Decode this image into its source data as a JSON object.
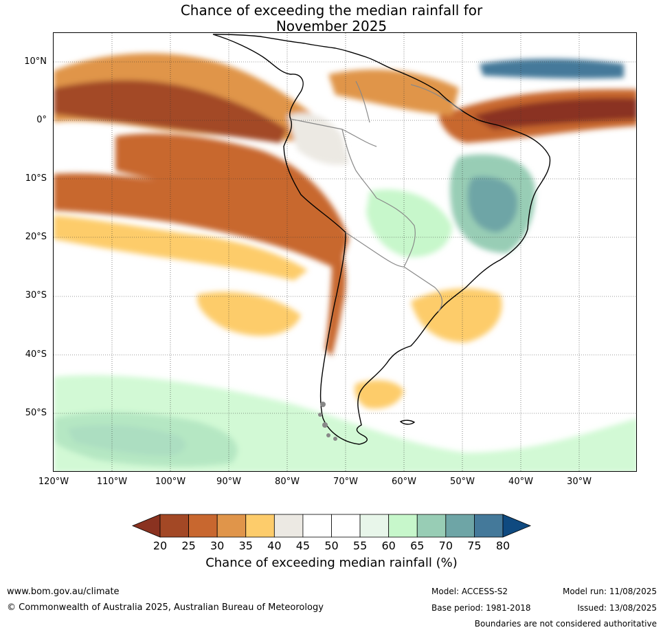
{
  "title": {
    "line1": "Chance of exceeding the median rainfall for",
    "line2": "November 2025"
  },
  "map": {
    "lat_labels": [
      "10°N",
      "0°",
      "10°S",
      "20°S",
      "30°S",
      "40°S",
      "50°S"
    ],
    "lon_labels": [
      "120°W",
      "110°W",
      "100°W",
      "90°W",
      "80°W",
      "70°W",
      "60°W",
      "50°W",
      "40°W",
      "30°W"
    ],
    "lat_range": [
      -60,
      15
    ],
    "lon_range": [
      -120,
      -20
    ],
    "gridlines": true
  },
  "colorbar": {
    "ticks": [
      "20",
      "25",
      "30",
      "35",
      "40",
      "45",
      "50",
      "55",
      "60",
      "65",
      "70",
      "75",
      "80"
    ],
    "colors": [
      "#a34825",
      "#c8672f",
      "#e0954a",
      "#fdcc6b",
      "#ece9e3",
      "#ffffff",
      "#ffffff",
      "#e8f6ea",
      "#c7f7cb",
      "#98cdb5",
      "#6ea5a6",
      "#44799a"
    ],
    "below_color": "#8a3220",
    "above_color": "#0f4a80",
    "label": "Chance of exceeding median rainfall (%)"
  },
  "footer": {
    "website": "www.bom.gov.au/climate",
    "copyright": "© Commonwealth of Australia 2025, Australian Bureau of Meteorology",
    "model": "Model: ACCESS-S2",
    "base_period": "Base period: 1981-2018",
    "model_run": "Model run: 11/08/2025",
    "issued": "Issued: 13/08/2025",
    "disclaimer": "Boundaries are not considered authoritative"
  }
}
